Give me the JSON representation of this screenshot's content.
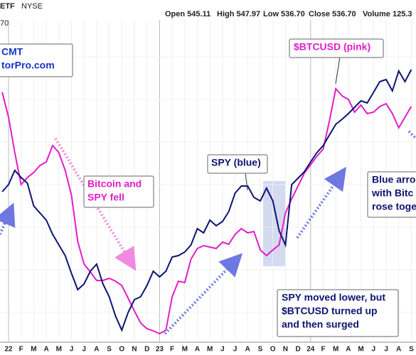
{
  "header": {
    "symbol": "ETF",
    "exchange": "NYSE",
    "sub": "70",
    "quote": [
      "Open 545.11",
      "High 547.97",
      "Low 536.70",
      "Close 536.70",
      "Volume 125.3"
    ]
  },
  "chart_data": {
    "type": "line",
    "categories": [
      null,
      "22",
      null,
      "F",
      null,
      "M",
      null,
      "A",
      null,
      "M",
      null,
      "J",
      null,
      "J",
      null,
      "A",
      null,
      "S",
      null,
      "O",
      null,
      "N",
      null,
      "D",
      null,
      "23",
      null,
      "F",
      null,
      "M",
      null,
      "A",
      null,
      "M",
      null,
      "J",
      null,
      "J",
      null,
      "A",
      null,
      "S",
      null,
      "O",
      null,
      "N",
      null,
      "D",
      null,
      "24",
      null,
      "F",
      null,
      "M",
      null,
      "A",
      null,
      "M",
      null,
      "J",
      null,
      "J",
      null,
      "A",
      null,
      "S"
    ],
    "series": [
      {
        "color": "#0d1470",
        "values": [
          212,
          222,
          242,
          232,
          224,
          192,
          182,
          172,
          152,
          137,
          122,
          97,
          74,
          82,
          100,
          110,
          82,
          64,
          37,
          17,
          42,
          60,
          64,
          80,
          100,
          92,
          100,
          120,
          122,
          127,
          137,
          160,
          154,
          172,
          164,
          170,
          184,
          210,
          220,
          220,
          204,
          199,
          217,
          199,
          157,
          137,
          222,
          231,
          240,
          254,
          267,
          277,
          292,
          307,
          314,
          322,
          331,
          340,
          337,
          352,
          367,
          370,
          354,
          382,
          367,
          384
        ]
      },
      {
        "color": "#e01ec8",
        "values": [
          352,
          317,
          267,
          222,
          232,
          239,
          249,
          254,
          277,
          267,
          242,
          207,
          142,
          110,
          99,
          87,
          87,
          90,
          86,
          80,
          62,
          44,
          27,
          19,
          16,
          12,
          17,
          64,
          86,
          84,
          117,
          132,
          136,
          134,
          132,
          141,
          138,
          152,
          160,
          154,
          156,
          130,
          122,
          130,
          137,
          182,
          202,
          220,
          238,
          250,
          262,
          272,
          312,
          357,
          347,
          342,
          324,
          334,
          322,
          324,
          332,
          336,
          322,
          302,
          317,
          332
        ]
      }
    ],
    "ylim": [
      0,
      454
    ],
    "grid": true,
    "annotations": [
      {
        "lines": [
          "CMT",
          "torPro.com"
        ]
      },
      {
        "lines": [
          "$BTCUSD (pink)"
        ]
      },
      {
        "lines": [
          "SPY (blue)"
        ]
      },
      {
        "lines": [
          "Bitcoin and",
          "SPY fell"
        ]
      },
      {
        "lines": [
          "Blue arro",
          "with Bitc",
          "rose toge"
        ]
      },
      {
        "lines": [
          "SPY moved lower, but",
          "$BTCUSD turned up",
          "and then surged"
        ]
      }
    ]
  }
}
